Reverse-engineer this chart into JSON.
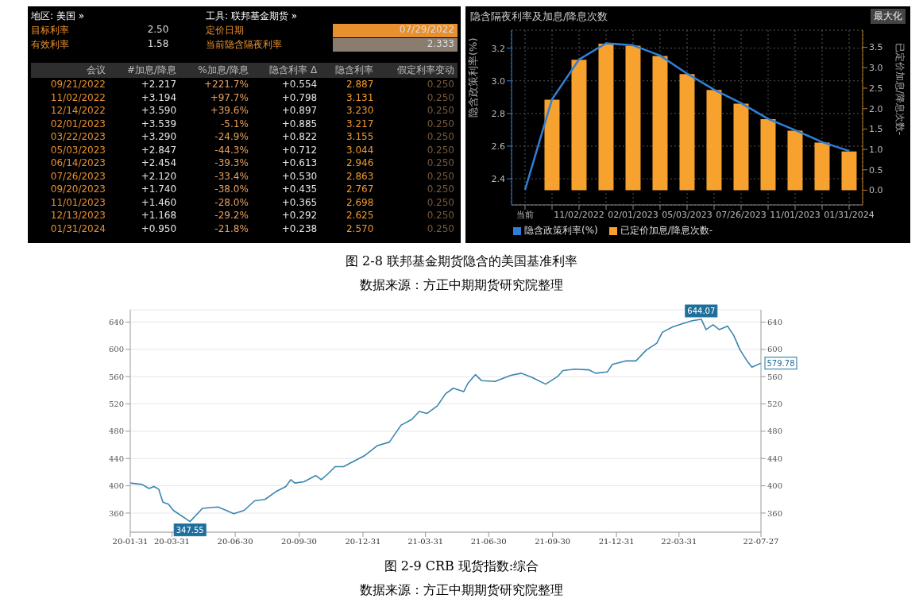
{
  "chart_data": [
    {
      "type": "other",
      "xlabel": "会议",
      "annotations": [
        "地区: 美国 »",
        "工具: 联邦基金期货 »",
        "目标利率",
        "2.50",
        "定价日期",
        "07/29/2022",
        "有效利率",
        "1.58",
        "当前隐含隔夜利率",
        "2.333"
      ],
      "categories": [
        "09/21/2022",
        "11/02/2022",
        "12/14/2022",
        "02/01/2023",
        "03/22/2023",
        "05/03/2023",
        "06/14/2023",
        "07/26/2023",
        "09/20/2023",
        "11/01/2023",
        "12/13/2023",
        "01/31/2024"
      ],
      "series": [
        {
          "name": "#加息/降息",
          "values": [
            2.217,
            3.194,
            3.59,
            3.539,
            3.29,
            2.847,
            2.454,
            2.12,
            1.74,
            1.46,
            1.168,
            0.95
          ],
          "value_labels": [
            "+2.217",
            "+3.194",
            "+3.590",
            "+3.539",
            "+3.290",
            "+2.847",
            "+2.454",
            "+2.120",
            "+1.740",
            "+1.460",
            "+1.168",
            "+0.950"
          ]
        },
        {
          "name": "%加息/降息",
          "values": [
            221.7,
            97.7,
            39.6,
            -5.1,
            -24.9,
            -44.3,
            -39.3,
            -33.4,
            -38.0,
            -28.0,
            -29.2,
            -21.8
          ],
          "value_labels": [
            "+221.7%",
            "+97.7%",
            "+39.6%",
            "-5.1%",
            "-24.9%",
            "-44.3%",
            "-39.3%",
            "-33.4%",
            "-38.0%",
            "-28.0%",
            "-29.2%",
            "-21.8%"
          ]
        },
        {
          "name": "隐含利率 Δ",
          "values": [
            0.554,
            0.798,
            0.897,
            0.885,
            0.822,
            0.712,
            0.613,
            0.53,
            0.435,
            0.365,
            0.292,
            0.238
          ],
          "value_labels": [
            "+0.554",
            "+0.798",
            "+0.897",
            "+0.885",
            "+0.822",
            "+0.712",
            "+0.613",
            "+0.530",
            "+0.435",
            "+0.365",
            "+0.292",
            "+0.238"
          ]
        },
        {
          "name": "隐含利率",
          "values": [
            2.887,
            3.131,
            3.23,
            3.217,
            3.155,
            3.044,
            2.946,
            2.863,
            2.767,
            2.698,
            2.625,
            2.57
          ],
          "value_labels": [
            "2.887",
            "3.131",
            "3.230",
            "3.217",
            "3.155",
            "3.044",
            "2.946",
            "2.863",
            "2.767",
            "2.698",
            "2.625",
            "2.570"
          ]
        },
        {
          "name": "假定利率变动",
          "values": [
            0.25,
            0.25,
            0.25,
            0.25,
            0.25,
            0.25,
            0.25,
            0.25,
            0.25,
            0.25,
            0.25,
            0.25
          ],
          "value_labels": [
            "0.250",
            "0.250",
            "0.250",
            "0.250",
            "0.250",
            "0.250",
            "0.250",
            "0.250",
            "0.250",
            "0.250",
            "0.250",
            "0.250"
          ]
        }
      ]
    },
    {
      "type": "bar",
      "title": "隐含隔夜利率及加息/降息次数",
      "ylabel": "隐含政策利率(%)",
      "y2label": "已定价加息/降息次数-",
      "annotations": [
        "最大化",
        "图 2-8 联邦基金期货隐含的美国基准利率",
        "数据来源：方正中期期货研究院整理"
      ],
      "categories": [
        "当前",
        null,
        "11/02/2022",
        null,
        "02/01/2023",
        null,
        "05/03/2023",
        null,
        "07/26/2023",
        null,
        "11/01/2023",
        null,
        "01/31/2024"
      ],
      "series": [
        {
          "name": "隐含政策利率(%)",
          "type": "line",
          "color": "#2f7fd8",
          "values": [
            2.333,
            2.887,
            3.131,
            3.23,
            3.217,
            3.155,
            3.044,
            2.946,
            2.863,
            2.767,
            2.698,
            2.625,
            2.57
          ]
        },
        {
          "name": "已定价加息/降息次数-",
          "type": "bar",
          "axis": "y2",
          "color": "#f7a22e",
          "values": [
            null,
            2.217,
            3.194,
            3.59,
            3.539,
            3.29,
            2.847,
            2.454,
            2.12,
            1.74,
            1.46,
            1.168,
            0.95
          ]
        }
      ],
      "ylim": [
        2.24,
        3.31
      ],
      "yticks": [
        2.4,
        2.6,
        2.8,
        {
          "value": 3,
          "label": "3.0"
        },
        3.2
      ],
      "y2lim": [
        -0.36,
        3.92
      ],
      "y2ticks": [
        {
          "value": 0,
          "label": "0.0"
        },
        0.5,
        {
          "value": 1,
          "label": "1.0"
        },
        1.5,
        {
          "value": 2,
          "label": "2.0"
        },
        2.5,
        {
          "value": 3,
          "label": "3.0"
        },
        3.5
      ],
      "grid": true,
      "legend": "bottom left",
      "marker": "none"
    },
    {
      "type": "line",
      "annotations": [
        {
          "text": "347.55",
          "x": "2020-04-26",
          "y": 347.55
        },
        {
          "text": "644.07",
          "x": "2022-05-02",
          "y": 644.07
        },
        {
          "text": "579.78",
          "x": "2022-07-27",
          "y": 579.78
        },
        "图 2-9 CRB 现货指数:综合",
        "数据来源：方正中期期货研究院整理"
      ],
      "x": [
        "2020-01-31",
        "2020-02-17",
        "2020-02-27",
        "2020-03-05",
        "2020-03-12",
        "2020-03-18",
        "2020-03-26",
        "2020-04-02",
        "2020-04-26",
        "2020-05-14",
        "2020-06-05",
        "2020-06-17",
        "2020-06-28",
        "2020-07-13",
        "2020-07-28",
        "2020-08-12",
        "2020-08-27",
        "2020-09-11",
        "2020-09-18",
        "2020-09-24",
        "2020-10-07",
        "2020-10-24",
        "2020-11-01",
        "2020-11-10",
        "2020-11-21",
        "2020-12-03",
        "2021-01-02",
        "2021-01-21",
        "2021-02-07",
        "2021-02-24",
        "2021-03-11",
        "2021-03-22",
        "2021-04-02",
        "2021-04-17",
        "2021-04-29",
        "2021-05-10",
        "2021-05-25",
        "2021-05-31",
        "2021-06-11",
        "2021-06-20",
        "2021-07-09",
        "2021-08-01",
        "2021-08-16",
        "2021-08-31",
        "2021-09-20",
        "2021-10-07",
        "2021-10-15",
        "2021-11-01",
        "2021-11-21",
        "2021-12-01",
        "2021-12-18",
        "2021-12-25",
        "2022-01-13",
        "2022-01-28",
        "2022-02-12",
        "2022-02-27",
        "2022-03-07",
        "2022-03-22",
        "2022-04-06",
        "2022-04-19",
        "2022-05-02",
        "2022-05-09",
        "2022-05-19",
        "2022-05-28",
        "2022-06-09",
        "2022-06-18",
        "2022-06-27",
        "2022-07-07",
        "2022-07-14",
        "2022-07-27"
      ],
      "series": [
        {
          "color": "#3a85b0",
          "values": [
            404,
            402,
            396,
            399,
            395,
            376,
            373,
            364,
            347.55,
            367,
            369,
            364,
            359,
            364,
            378,
            380,
            391,
            399,
            409,
            404,
            406,
            415,
            409,
            417,
            428,
            428,
            444,
            459,
            464,
            489,
            497,
            509,
            506,
            517,
            535,
            543,
            538,
            550,
            563,
            554,
            553,
            562,
            565,
            559,
            549,
            560,
            569,
            571,
            570,
            565,
            567,
            578,
            583,
            583,
            599,
            609,
            625,
            633,
            638,
            642,
            644.07,
            629,
            636,
            629,
            634,
            620,
            599,
            583,
            574,
            579.78
          ]
        }
      ],
      "xlim": [
        "2020-01-31",
        "2022-07-27"
      ],
      "xticks": [
        {
          "value": "2020-01-31",
          "label": "20-01-31"
        },
        {
          "value": "2020-03-31",
          "label": "20-03-31"
        },
        {
          "value": "2020-06-30",
          "label": "20-06-30"
        },
        {
          "value": "2020-09-30",
          "label": "20-09-30"
        },
        {
          "value": "2020-12-31",
          "label": "20-12-31"
        },
        {
          "value": "2021-03-31",
          "label": "21-03-31"
        },
        {
          "value": "2021-06-30",
          "label": "21-06-30"
        },
        {
          "value": "2021-09-30",
          "label": "21-09-30"
        },
        {
          "value": "2021-12-31",
          "label": "21-12-31"
        },
        {
          "value": "2022-03-31",
          "label": "22-03-31"
        },
        {
          "value": "2022-07-27",
          "label": "22-07-27"
        }
      ],
      "ylim": [
        332,
        658
      ],
      "yticks": [
        360,
        400,
        440,
        480,
        520,
        560,
        600,
        640
      ],
      "y2lim": [
        332,
        658
      ],
      "y2ticks": [
        360,
        400,
        440,
        480,
        520,
        560,
        600,
        640
      ],
      "grid": "y",
      "marker": "none",
      "line_style": "solid"
    }
  ]
}
